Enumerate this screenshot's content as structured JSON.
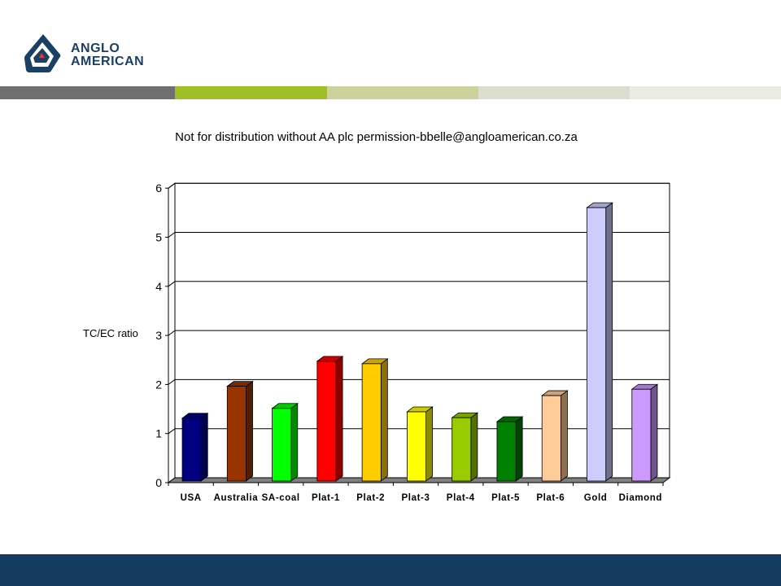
{
  "header": {
    "logo_line1": "ANGLO",
    "logo_line2": "AMERICAN",
    "logo_icon": "anglo-american-logo-icon",
    "brand_color": "#1c3f64",
    "stripe_colors": [
      "#6f6f6f",
      "#9ebf26",
      "#cdd19a",
      "#dcdccf",
      "#ebebdf"
    ]
  },
  "footer": {
    "color": "#143a5e"
  },
  "chart_data": {
    "type": "bar",
    "title": "Not for distribution without AA plc permission-bbelle@angloamerican.co.za",
    "ylabel": "TC/EC ratio",
    "xlabel": "",
    "ylim": [
      0,
      6
    ],
    "yticks": [
      0,
      1,
      2,
      3,
      4,
      5,
      6
    ],
    "grid": true,
    "legend": "none",
    "style": "3d-column",
    "categories": [
      "USA",
      "Australia",
      "SA-coal",
      "Plat-1",
      "Plat-2",
      "Plat-3",
      "Plat-4",
      "Plat-5",
      "Plat-6",
      "Gold",
      "Diamond"
    ],
    "values": [
      1.28,
      1.93,
      1.48,
      2.44,
      2.39,
      1.41,
      1.29,
      1.21,
      1.74,
      5.57,
      1.87
    ],
    "colors": [
      "#000080",
      "#993300",
      "#00ff00",
      "#ff0000",
      "#ffcc00",
      "#ffff00",
      "#99cc00",
      "#008000",
      "#ffcc99",
      "#ccccff",
      "#cc99ff"
    ]
  }
}
